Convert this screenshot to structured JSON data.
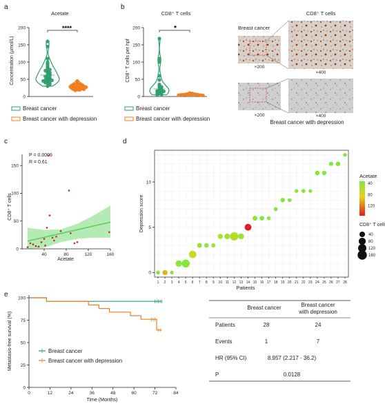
{
  "panels": {
    "a": {
      "letter": "a",
      "title": "Acetate",
      "ylabel": "Concentration (μmol/L)",
      "significance": "****",
      "legend": [
        "Breast cancer",
        "Breast cancer with depression"
      ]
    },
    "b": {
      "letter": "b",
      "title": "CD8⁺ T cells",
      "ylabel": "CD8⁺ T cells per hpf",
      "significance": "*",
      "legend": [
        "Breast cancer",
        "Breast cancer with depression"
      ],
      "micro_title": "CD8⁺ T cells",
      "micro_row1_label": "Breast cancer",
      "micro_row2_label": "Breast cancer with depression",
      "mag_low": "×200",
      "mag_high": "×400"
    },
    "c": {
      "letter": "c",
      "p_text": "P = 0.0006",
      "r_text": "R = 0.61",
      "xlabel": "Acetate",
      "ylabel": "CD8⁺ T cells"
    },
    "d": {
      "letter": "d",
      "xlabel": "Patients",
      "ylabel": "Depression score",
      "color_legend_title": "Acetate",
      "size_legend_title": "CD8⁺ T cells"
    },
    "e": {
      "letter": "e",
      "xlabel": "Time (Months)",
      "ylabel": "Metastasis-free survival (%)",
      "legend": [
        "Breast cancer",
        "Breast cancer with depression"
      ]
    }
  },
  "colors": {
    "breast_cancer": "#2e9e6b",
    "depression": "#f07d1e",
    "scatter_point": "#cc2222",
    "ci_band": "#9be39b",
    "fit_line": "#5fcf5f"
  },
  "table": {
    "headers": [
      "",
      "Breast cancer",
      "Breast cancer with depression"
    ],
    "rows": [
      {
        "label": "Patients",
        "bc": "28",
        "dep": "24"
      },
      {
        "label": "Events",
        "bc": "1",
        "dep": "7"
      },
      {
        "label": "HR (95% CI)",
        "value": "8.957 (2.217 - 36.2)"
      },
      {
        "label": "P",
        "value": "0.0128"
      }
    ]
  },
  "chart_data": [
    {
      "id": "a",
      "type": "violin",
      "title": "Acetate",
      "ylabel": "Concentration (μmol/L)",
      "ylim": [
        0,
        200
      ],
      "yticks": [
        0,
        50,
        100,
        150,
        200
      ],
      "series": [
        {
          "name": "Breast cancer",
          "values": [
            160,
            145,
            110,
            100,
            95,
            90,
            85,
            80,
            78,
            75,
            72,
            70,
            68,
            65,
            62,
            60,
            58,
            55,
            53,
            50,
            50,
            48,
            47,
            45,
            44,
            42,
            40,
            38,
            35,
            30
          ]
        },
        {
          "name": "Breast cancer with depression",
          "values": [
            45,
            40,
            38,
            36,
            35,
            34,
            33,
            32,
            31,
            30,
            30,
            29,
            28,
            28,
            27,
            26,
            25,
            24,
            23,
            22,
            21,
            20,
            19,
            18
          ]
        }
      ]
    },
    {
      "id": "b",
      "type": "violin",
      "title": "CD8⁺ T cells",
      "ylabel": "CD8⁺ T cells per hpf",
      "ylim": [
        0,
        200
      ],
      "yticks": [
        0,
        50,
        100,
        150,
        200
      ],
      "series": [
        {
          "name": "Breast cancer",
          "values": [
            168,
            110,
            100,
            60,
            48,
            35,
            30,
            28,
            25,
            22,
            20,
            18,
            16,
            15,
            14,
            12,
            10,
            8,
            6,
            5
          ]
        },
        {
          "name": "Breast cancer with depression",
          "values": [
            10,
            9,
            8,
            8,
            7,
            7,
            6,
            6,
            5,
            5,
            5,
            4,
            4,
            3
          ]
        }
      ]
    },
    {
      "id": "c",
      "type": "scatter",
      "xlabel": "Acetate",
      "ylabel": "CD8⁺ T cells",
      "xlim": [
        0,
        160
      ],
      "ylim": [
        0,
        170
      ],
      "xticks": [
        40,
        80,
        120,
        160
      ],
      "yticks": [
        0,
        50,
        100,
        150
      ],
      "points": [
        {
          "x": 48,
          "y": 168
        },
        {
          "x": 85,
          "y": 105
        },
        {
          "x": 50,
          "y": 60
        },
        {
          "x": 45,
          "y": 38
        },
        {
          "x": 70,
          "y": 32
        },
        {
          "x": 158,
          "y": 30
        },
        {
          "x": 88,
          "y": 28
        },
        {
          "x": 95,
          "y": 10
        },
        {
          "x": 100,
          "y": 12
        },
        {
          "x": 62,
          "y": 22
        },
        {
          "x": 55,
          "y": 20
        },
        {
          "x": 40,
          "y": 18
        },
        {
          "x": 35,
          "y": 12
        },
        {
          "x": 20,
          "y": 8
        },
        {
          "x": 25,
          "y": 5
        },
        {
          "x": 30,
          "y": 4
        },
        {
          "x": 15,
          "y": 10
        },
        {
          "x": 42,
          "y": 6
        },
        {
          "x": 10,
          "y": 3
        },
        {
          "x": 58,
          "y": 15
        }
      ],
      "fit": {
        "x": [
          10,
          160
        ],
        "y": [
          14,
          48
        ]
      },
      "ci_upper": {
        "x": [
          10,
          40,
          70,
          100,
          130,
          160
        ],
        "y": [
          38,
          34,
          35,
          45,
          60,
          78
        ]
      },
      "ci_lower": {
        "x": [
          10,
          40,
          70,
          100,
          130,
          160
        ],
        "y": [
          -8,
          2,
          12,
          18,
          20,
          20
        ]
      }
    },
    {
      "id": "d",
      "type": "bubble",
      "xlabel": "Patients",
      "ylabel": "Depression score",
      "xlim": [
        0.5,
        28.5
      ],
      "ylim": [
        -0.5,
        13.5
      ],
      "xticks": [
        1,
        2,
        3,
        4,
        5,
        6,
        7,
        8,
        9,
        10,
        11,
        12,
        13,
        14,
        15,
        16,
        17,
        18,
        19,
        20,
        21,
        22,
        23,
        24,
        25,
        26,
        27,
        28
      ],
      "yticks": [
        0,
        5,
        10
      ],
      "points": [
        {
          "x": 1,
          "y": 0,
          "acetate": 40,
          "cd8": 10
        },
        {
          "x": 2,
          "y": 0,
          "acetate": 100,
          "cd8": 30
        },
        {
          "x": 3,
          "y": 0,
          "acetate": 40,
          "cd8": 8
        },
        {
          "x": 4,
          "y": 1,
          "acetate": 45,
          "cd8": 60
        },
        {
          "x": 5,
          "y": 1,
          "acetate": 42,
          "cd8": 110
        },
        {
          "x": 6,
          "y": 2,
          "acetate": 75,
          "cd8": 90
        },
        {
          "x": 7,
          "y": 3,
          "acetate": 50,
          "cd8": 25
        },
        {
          "x": 8,
          "y": 3,
          "acetate": 45,
          "cd8": 20
        },
        {
          "x": 9,
          "y": 3,
          "acetate": 55,
          "cd8": 15
        },
        {
          "x": 10,
          "y": 4,
          "acetate": 60,
          "cd8": 30
        },
        {
          "x": 11,
          "y": 4,
          "acetate": 55,
          "cd8": 40
        },
        {
          "x": 12,
          "y": 4,
          "acetate": 65,
          "cd8": 120
        },
        {
          "x": 13,
          "y": 4,
          "acetate": 50,
          "cd8": 45
        },
        {
          "x": 14,
          "y": 5,
          "acetate": 150,
          "cd8": 70
        },
        {
          "x": 15,
          "y": 6,
          "acetate": 45,
          "cd8": 25
        },
        {
          "x": 16,
          "y": 6,
          "acetate": 42,
          "cd8": 20
        },
        {
          "x": 17,
          "y": 6,
          "acetate": 45,
          "cd8": 10
        },
        {
          "x": 18,
          "y": 7,
          "acetate": 40,
          "cd8": 12
        },
        {
          "x": 19,
          "y": 8,
          "acetate": 42,
          "cd8": 18
        },
        {
          "x": 20,
          "y": 8,
          "acetate": 40,
          "cd8": 10
        },
        {
          "x": 21,
          "y": 9,
          "acetate": 40,
          "cd8": 10
        },
        {
          "x": 22,
          "y": 9,
          "acetate": 42,
          "cd8": 12
        },
        {
          "x": 23,
          "y": 9,
          "acetate": 40,
          "cd8": 8
        },
        {
          "x": 24,
          "y": 11,
          "acetate": 42,
          "cd8": 20
        },
        {
          "x": 25,
          "y": 11,
          "acetate": 40,
          "cd8": 18
        },
        {
          "x": 26,
          "y": 12,
          "acetate": 40,
          "cd8": 15
        },
        {
          "x": 27,
          "y": 12,
          "acetate": 42,
          "cd8": 20
        },
        {
          "x": 28,
          "y": 13,
          "acetate": 40,
          "cd8": 8
        }
      ],
      "color_legend_ticks": [
        40,
        80,
        120
      ],
      "size_legend": [
        40,
        80,
        120,
        160
      ]
    },
    {
      "id": "e",
      "type": "line",
      "xlabel": "Time (Months)",
      "ylabel": "Metastasis-free survival (%)",
      "xlim": [
        0,
        84
      ],
      "ylim": [
        0,
        100
      ],
      "xticks": [
        0,
        12,
        24,
        36,
        48,
        60,
        72,
        84
      ],
      "yticks": [
        0,
        25,
        50,
        75,
        100
      ],
      "series": [
        {
          "name": "Breast cancer",
          "steps": [
            [
              0,
              100
            ],
            [
              10,
              100
            ],
            [
              10,
              96
            ],
            [
              76,
              96
            ]
          ],
          "censored": [
            72,
            73,
            74,
            75,
            76
          ]
        },
        {
          "name": "Breast cancer with depression",
          "steps": [
            [
              0,
              100
            ],
            [
              10,
              100
            ],
            [
              10,
              96
            ],
            [
              34,
              96
            ],
            [
              34,
              92
            ],
            [
              40,
              92
            ],
            [
              40,
              88
            ],
            [
              46,
              88
            ],
            [
              46,
              84
            ],
            [
              58,
              84
            ],
            [
              58,
              80
            ],
            [
              64,
              80
            ],
            [
              64,
              76
            ],
            [
              73,
              76
            ],
            [
              73,
              64
            ],
            [
              76,
              64
            ]
          ],
          "censored": [
            70,
            71,
            72,
            74,
            75
          ]
        }
      ]
    }
  ]
}
